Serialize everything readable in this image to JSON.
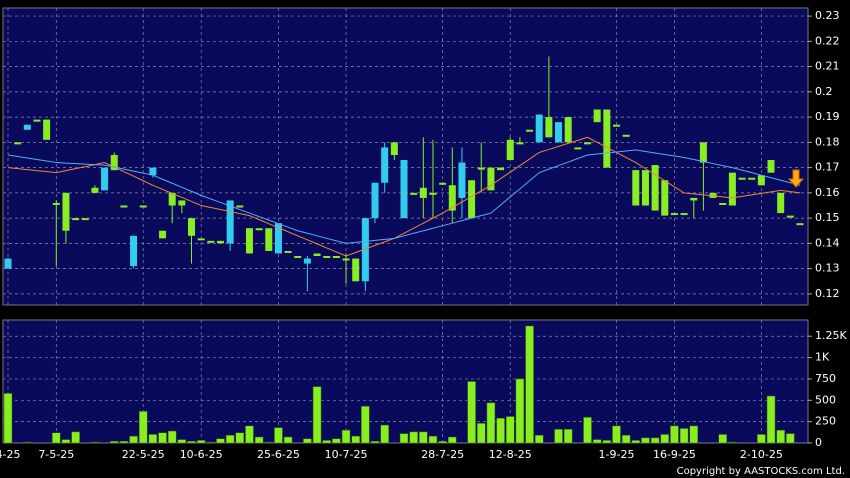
{
  "chart_data": [
    {
      "type": "candlestick",
      "categories": [
        "4-25",
        null,
        null,
        null,
        null,
        "7-5-25",
        null,
        null,
        null,
        null,
        null,
        null,
        null,
        null,
        "22-5-25",
        null,
        null,
        null,
        null,
        null,
        "10-6-25",
        null,
        null,
        null,
        null,
        null,
        null,
        null,
        "25-6-25",
        null,
        null,
        null,
        null,
        null,
        null,
        "10-7-25",
        null,
        null,
        null,
        null,
        null,
        null,
        null,
        null,
        null,
        "28-7-25",
        null,
        null,
        null,
        null,
        null,
        null,
        "12-8-25",
        null,
        null,
        null,
        null,
        null,
        null,
        null,
        null,
        null,
        null,
        "1-9-25",
        null,
        null,
        null,
        null,
        null,
        "16-9-25",
        null,
        null,
        null,
        null,
        null,
        null,
        null,
        null,
        "2-10-25",
        null,
        null,
        null,
        null
      ],
      "open": [
        0.13,
        0.18,
        0.185,
        0.189,
        0.189,
        0.156,
        0.16,
        0.15,
        0.15,
        0.162,
        0.161,
        0.175,
        0.155,
        0.131,
        0.155,
        0.167,
        0.145,
        0.16,
        0.157,
        0.15,
        0.142,
        0.141,
        0.141,
        0.14,
        0.155,
        0.146,
        0.146,
        0.146,
        0.136,
        0.137,
        0.135,
        0.132,
        0.136,
        0.135,
        0.135,
        0.134,
        0.134,
        0.125,
        0.15,
        0.164,
        0.18,
        0.15,
        0.16,
        0.162,
        0.16,
        0.164,
        0.163,
        0.158,
        0.165,
        0.17,
        0.17,
        0.17,
        0.181,
        0.18,
        0.185,
        0.18,
        0.19,
        0.18,
        0.19,
        0.178,
        0.18,
        0.193,
        0.193,
        0.187,
        0.183,
        0.169,
        0.169,
        0.171,
        0.165,
        0.152,
        0.152,
        0.158,
        0.18,
        0.16,
        0.156,
        0.168,
        0.166,
        0.166,
        0.167,
        0.173,
        0.16,
        0.151,
        0.148
      ],
      "high": [
        0.134,
        0.18,
        0.187,
        0.189,
        0.189,
        0.157,
        0.16,
        0.15,
        0.15,
        0.163,
        0.17,
        0.176,
        0.155,
        0.143,
        0.155,
        0.17,
        0.145,
        0.16,
        0.157,
        0.15,
        0.142,
        0.141,
        0.141,
        0.157,
        0.155,
        0.146,
        0.146,
        0.146,
        0.148,
        0.137,
        0.135,
        0.135,
        0.136,
        0.135,
        0.135,
        0.136,
        0.134,
        0.15,
        0.164,
        0.18,
        0.18,
        0.173,
        0.16,
        0.182,
        0.181,
        0.164,
        0.178,
        0.178,
        0.165,
        0.18,
        0.17,
        0.17,
        0.182,
        0.182,
        0.185,
        0.191,
        0.214,
        0.188,
        0.19,
        0.178,
        0.18,
        0.193,
        0.193,
        0.187,
        0.183,
        0.169,
        0.169,
        0.171,
        0.165,
        0.152,
        0.152,
        0.158,
        0.18,
        0.16,
        0.156,
        0.168,
        0.166,
        0.166,
        0.167,
        0.173,
        0.16,
        0.151,
        0.148
      ],
      "low": [
        0.13,
        0.18,
        0.185,
        0.189,
        0.181,
        0.131,
        0.14,
        0.15,
        0.15,
        0.16,
        0.161,
        0.169,
        0.155,
        0.13,
        0.155,
        0.166,
        0.142,
        0.148,
        0.152,
        0.132,
        0.142,
        0.141,
        0.14,
        0.137,
        0.155,
        0.136,
        0.146,
        0.137,
        0.136,
        0.137,
        0.135,
        0.121,
        0.135,
        0.135,
        0.135,
        0.124,
        0.125,
        0.121,
        0.148,
        0.16,
        0.173,
        0.15,
        0.16,
        0.15,
        0.15,
        0.164,
        0.148,
        0.15,
        0.15,
        0.16,
        0.161,
        0.169,
        0.173,
        0.18,
        0.185,
        0.18,
        0.182,
        0.18,
        0.18,
        0.178,
        0.18,
        0.188,
        0.17,
        0.187,
        0.183,
        0.155,
        0.155,
        0.153,
        0.151,
        0.152,
        0.152,
        0.15,
        0.153,
        0.158,
        0.156,
        0.155,
        0.166,
        0.166,
        0.163,
        0.168,
        0.152,
        0.151,
        0.148
      ],
      "close": [
        0.134,
        0.18,
        0.187,
        0.189,
        0.181,
        0.156,
        0.145,
        0.15,
        0.15,
        0.16,
        0.17,
        0.169,
        0.155,
        0.143,
        0.155,
        0.17,
        0.142,
        0.155,
        0.155,
        0.143,
        0.142,
        0.141,
        0.14,
        0.157,
        0.155,
        0.136,
        0.146,
        0.137,
        0.148,
        0.137,
        0.135,
        0.134,
        0.135,
        0.135,
        0.135,
        0.134,
        0.125,
        0.15,
        0.164,
        0.178,
        0.175,
        0.173,
        0.16,
        0.158,
        0.16,
        0.164,
        0.153,
        0.172,
        0.15,
        0.17,
        0.161,
        0.169,
        0.173,
        0.18,
        0.185,
        0.191,
        0.182,
        0.188,
        0.18,
        0.178,
        0.18,
        0.188,
        0.17,
        0.187,
        0.183,
        0.155,
        0.155,
        0.153,
        0.151,
        0.152,
        0.152,
        0.157,
        0.172,
        0.158,
        0.156,
        0.155,
        0.166,
        0.166,
        0.163,
        0.168,
        0.152,
        0.151,
        0.148
      ],
      "series": [
        {
          "color": "#ee8833",
          "values": [
            0.17,
            0.1696,
            0.1692,
            0.1688,
            0.1684,
            0.168,
            0.1688,
            0.1696,
            0.1704,
            0.1712,
            0.172,
            0.1702,
            0.1684,
            0.1666,
            0.1648,
            0.163,
            0.1614,
            0.1598,
            0.1582,
            0.1566,
            0.155,
            0.1542,
            0.1534,
            0.1526,
            0.1518,
            0.151,
            0.1494,
            0.1478,
            0.1462,
            0.1446,
            0.143,
            0.1414,
            0.1398,
            0.1382,
            0.1366,
            0.135,
            0.1364,
            0.1378,
            0.1392,
            0.1406,
            0.142,
            0.144,
            0.146,
            0.148,
            0.15,
            0.152,
            0.1542,
            0.1564,
            0.1586,
            0.1608,
            0.163,
            0.1656,
            0.1682,
            0.1708,
            0.1734,
            0.176,
            0.1772,
            0.1784,
            0.1796,
            0.1808,
            0.182,
            0.18,
            0.178,
            0.176,
            0.174,
            0.172,
            0.1696,
            0.1672,
            0.1648,
            0.1624,
            0.16,
            0.1596,
            0.1592,
            0.1588,
            0.1584,
            0.158,
            0.1586,
            0.1592,
            0.1598,
            0.1604,
            0.161,
            0.1605,
            0.16
          ]
        },
        {
          "color": "#55aaff",
          "values": [
            0.175,
            0.1744,
            0.1738,
            0.1732,
            0.1726,
            0.172,
            0.1718,
            0.1716,
            0.1714,
            0.1712,
            0.171,
            0.1702,
            0.1694,
            0.1686,
            0.1678,
            0.167,
            0.1654,
            0.1638,
            0.1622,
            0.1606,
            0.159,
            0.1576,
            0.1562,
            0.1548,
            0.1534,
            0.152,
            0.1506,
            0.1492,
            0.1478,
            0.1464,
            0.145,
            0.144,
            0.143,
            0.142,
            0.141,
            0.14,
            0.1404,
            0.1408,
            0.1412,
            0.1416,
            0.142,
            0.143,
            0.144,
            0.145,
            0.146,
            0.147,
            0.148,
            0.149,
            0.15,
            0.151,
            0.152,
            0.1552,
            0.1584,
            0.1616,
            0.1648,
            0.168,
            0.1694,
            0.1708,
            0.1722,
            0.1736,
            0.175,
            0.1754,
            0.1758,
            0.1762,
            0.1766,
            0.177,
            0.1764,
            0.1758,
            0.1752,
            0.1746,
            0.174,
            0.1732,
            0.1724,
            0.1716,
            0.1708,
            0.17,
            0.169,
            0.168,
            0.167,
            0.166,
            0.165,
            0.164,
            0.163
          ]
        }
      ],
      "ylim": [
        0.1156,
        0.2332
      ],
      "yticks": [
        0.12,
        0.13,
        0.14,
        0.15,
        0.16,
        0.17,
        0.18,
        0.19,
        0.2,
        0.21,
        0.22,
        0.23
      ],
      "grid": true,
      "up_color": "#33ccee",
      "down_color": "#88ee22"
    },
    {
      "type": "bar",
      "values": [
        580,
        0,
        10,
        0,
        0,
        120,
        40,
        130,
        0,
        10,
        0,
        20,
        20,
        80,
        370,
        100,
        120,
        140,
        40,
        20,
        30,
        10,
        50,
        90,
        120,
        200,
        70,
        10,
        180,
        70,
        0,
        50,
        660,
        30,
        50,
        150,
        80,
        430,
        20,
        210,
        0,
        110,
        130,
        130,
        80,
        20,
        70,
        0,
        720,
        230,
        470,
        290,
        310,
        750,
        1370,
        90,
        0,
        160,
        160,
        0,
        300,
        40,
        30,
        200,
        90,
        30,
        60,
        60,
        100,
        200,
        170,
        200,
        0,
        0,
        100,
        10,
        0,
        0,
        100,
        550,
        150,
        110,
        0
      ],
      "color": "#88ee22",
      "ylim": [
        0,
        1440
      ],
      "yticks": [
        0,
        250,
        500,
        750,
        {
          "value": 1000,
          "label": "1K"
        },
        {
          "value": 1250,
          "label": "1.25K"
        }
      ],
      "grid": true
    }
  ],
  "footer": "Copyright by AASTOCKS.com Ltd."
}
